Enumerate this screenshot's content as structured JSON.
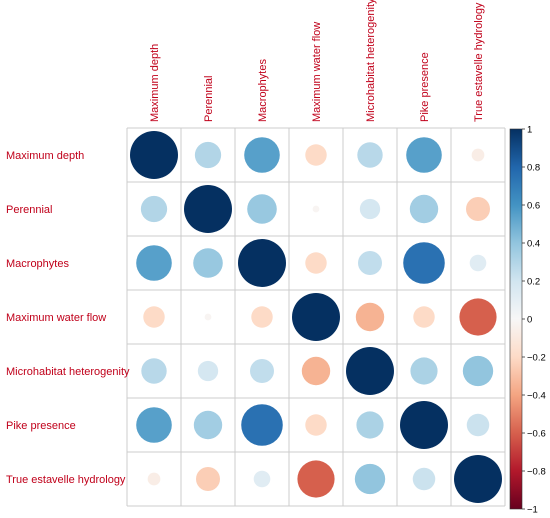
{
  "chart_data": {
    "type": "heatmap",
    "style": "correlation-circles",
    "title": "",
    "variables": [
      "Maximum depth",
      "Perennial",
      "Macrophytes",
      "Maximum water flow",
      "Microhabitat heterogenity",
      "Pike presence",
      "True estavelle hydrology"
    ],
    "matrix": [
      [
        1.0,
        0.3,
        0.55,
        -0.2,
        0.28,
        0.55,
        -0.07
      ],
      [
        0.3,
        1.0,
        0.38,
        -0.02,
        0.18,
        0.35,
        -0.25
      ],
      [
        0.55,
        0.38,
        1.0,
        -0.2,
        0.25,
        0.75,
        0.12
      ],
      [
        -0.2,
        -0.02,
        -0.2,
        1.0,
        -0.35,
        -0.2,
        -0.6
      ],
      [
        0.28,
        0.18,
        0.25,
        -0.35,
        1.0,
        0.32,
        0.4
      ],
      [
        0.55,
        0.35,
        0.75,
        -0.2,
        0.32,
        1.0,
        0.22
      ],
      [
        -0.07,
        -0.25,
        0.12,
        -0.6,
        0.4,
        0.22,
        1.0
      ]
    ],
    "colorbar": {
      "min": -1,
      "max": 1,
      "ticks": [
        "1",
        "0.8",
        "0.6",
        "0.4",
        "0.2",
        "0",
        "−0.2",
        "−0.4",
        "−0.6",
        "−0.8",
        "−1"
      ]
    },
    "colors": {
      "strong_positive": "#053061",
      "positive": "#2166ac",
      "mid_positive": "#4393c3",
      "light_positive": "#92c5de",
      "pale_positive": "#d1e5f0",
      "neutral": "#f7f7f7",
      "pale_negative": "#fddbc7",
      "light_negative": "#f4a582",
      "mid_negative": "#d6604d",
      "negative": "#b2182b",
      "strong_negative": "#67001f",
      "label": "#c0001a",
      "grid": "#cccccc"
    }
  }
}
